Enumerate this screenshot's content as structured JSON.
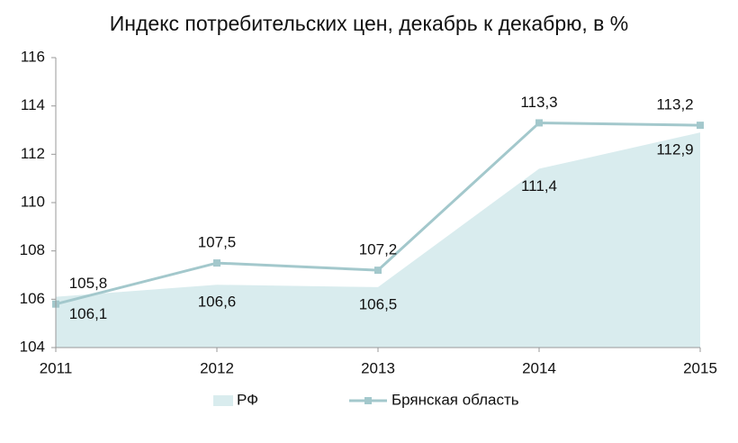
{
  "chart_data": {
    "type": "line",
    "title": "Индекс потребительских цен, декабрь к декабрю, в %",
    "x": [
      2011,
      2012,
      2013,
      2014,
      2015
    ],
    "xlim": [
      2011,
      2015
    ],
    "xticks": [
      2011,
      2012,
      2013,
      2014,
      2015
    ],
    "ylim": [
      104,
      116
    ],
    "yticks": [
      104,
      106,
      108,
      110,
      112,
      114,
      116
    ],
    "grid": false,
    "series": [
      {
        "name": "РФ",
        "mark": "area",
        "color": "#d9ecee",
        "values": [
          106.1,
          106.6,
          106.5,
          111.4,
          112.9
        ],
        "value_labels": [
          "106,1",
          "106,6",
          "106,5",
          "111,4",
          "112,9"
        ]
      },
      {
        "name": "Брянская область",
        "mark": "line",
        "color": "#a3c8cc",
        "values": [
          105.8,
          107.5,
          107.2,
          113.3,
          113.2
        ],
        "value_labels": [
          "105,8",
          "107,5",
          "107,2",
          "113,3",
          "113,2"
        ]
      }
    ]
  }
}
